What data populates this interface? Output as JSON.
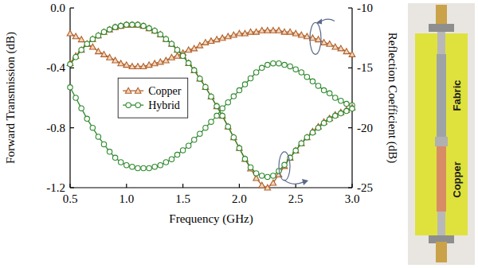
{
  "chart_data": {
    "type": "line",
    "x_label": "Frequency (GHz)",
    "y_label": "Forward Transmission (dB)",
    "y2_label": "Reflection Coefficient (dB)",
    "x": [
      0.5,
      0.55,
      0.6,
      0.65,
      0.7,
      0.75,
      0.8,
      0.85,
      0.9,
      0.95,
      1.0,
      1.05,
      1.1,
      1.15,
      1.2,
      1.25,
      1.3,
      1.35,
      1.4,
      1.45,
      1.5,
      1.55,
      1.6,
      1.65,
      1.7,
      1.75,
      1.8,
      1.85,
      1.9,
      1.95,
      2.0,
      2.05,
      2.1,
      2.15,
      2.2,
      2.25,
      2.3,
      2.35,
      2.4,
      2.45,
      2.5,
      2.55,
      2.6,
      2.65,
      2.7,
      2.75,
      2.8,
      2.85,
      2.9,
      2.95,
      3.0
    ],
    "xlim": [
      0.5,
      3.0
    ],
    "xticks": [
      0.5,
      {
        "value": 1,
        "label": "1.0"
      },
      1.5,
      {
        "value": 2,
        "label": "2.0"
      },
      2.5,
      {
        "value": 3,
        "label": "3.0"
      }
    ],
    "ylim": [
      -1.2,
      0
    ],
    "yticks": [
      {
        "value": 0,
        "label": "0.0"
      },
      -0.4,
      -0.8,
      -1.2
    ],
    "y2lim": [
      -25,
      -10
    ],
    "y2ticks": [
      -10,
      -15,
      -20,
      -25
    ],
    "grid": false,
    "legend": "center left",
    "annotations": [
      "Fabric",
      "Copper"
    ],
    "series": [
      {
        "name": "Copper",
        "color": "#b0602a",
        "marker": "triangle",
        "line_style": "solid",
        "values": [
          -0.17,
          -0.19,
          -0.21,
          -0.24,
          -0.26,
          -0.29,
          -0.31,
          -0.33,
          -0.35,
          -0.37,
          -0.38,
          -0.39,
          -0.39,
          -0.39,
          -0.38,
          -0.37,
          -0.36,
          -0.35,
          -0.33,
          -0.32,
          -0.3,
          -0.28,
          -0.27,
          -0.25,
          -0.23,
          -0.22,
          -0.21,
          -0.2,
          -0.19,
          -0.18,
          -0.17,
          -0.17,
          -0.16,
          -0.16,
          -0.15,
          -0.15,
          -0.15,
          -0.15,
          -0.16,
          -0.16,
          -0.17,
          -0.18,
          -0.19,
          -0.2,
          -0.21,
          -0.23,
          -0.24,
          -0.26,
          -0.27,
          -0.29,
          -0.31
        ]
      },
      {
        "name": "Hybrid",
        "color": "#2f8a2f",
        "marker": "circle",
        "line_style": "solid",
        "values": [
          -0.53,
          -0.6,
          -0.67,
          -0.74,
          -0.8,
          -0.86,
          -0.91,
          -0.96,
          -1.0,
          -1.03,
          -1.05,
          -1.06,
          -1.07,
          -1.07,
          -1.07,
          -1.06,
          -1.05,
          -1.03,
          -1.01,
          -0.98,
          -0.95,
          -0.92,
          -0.88,
          -0.84,
          -0.8,
          -0.76,
          -0.72,
          -0.67,
          -0.63,
          -0.59,
          -0.55,
          -0.51,
          -0.47,
          -0.43,
          -0.4,
          -0.38,
          -0.37,
          -0.37,
          -0.38,
          -0.39,
          -0.41,
          -0.43,
          -0.46,
          -0.49,
          -0.52,
          -0.55,
          -0.57,
          -0.6,
          -0.62,
          -0.64,
          -0.65
        ]
      },
      {
        "name": "Copper",
        "color": "#b0602a",
        "marker": "triangle",
        "line_style": "solid",
        "axis": "y2",
        "values": [
          -14.6,
          -14.0,
          -13.5,
          -13.0,
          -12.6,
          -12.3,
          -12.0,
          -11.8,
          -11.6,
          -11.5,
          -11.4,
          -11.4,
          -11.4,
          -11.5,
          -11.7,
          -11.9,
          -12.2,
          -12.6,
          -13.0,
          -13.5,
          -14.0,
          -14.6,
          -15.2,
          -15.9,
          -16.6,
          -17.4,
          -18.2,
          -19.0,
          -19.9,
          -20.8,
          -21.7,
          -22.6,
          -23.4,
          -24.2,
          -24.8,
          -25.0,
          -24.6,
          -23.9,
          -23.2,
          -22.5,
          -21.9,
          -21.3,
          -20.8,
          -20.3,
          -19.9,
          -19.5,
          -19.2,
          -18.9,
          -18.7,
          -18.5,
          -18.3
        ]
      },
      {
        "name": "Hybrid",
        "color": "#2f8a2f",
        "marker": "circle",
        "line_style": "solid",
        "axis": "y2",
        "values": [
          -14.7,
          -14.1,
          -13.5,
          -13.0,
          -12.6,
          -12.3,
          -12.0,
          -11.8,
          -11.6,
          -11.5,
          -11.4,
          -11.4,
          -11.4,
          -11.5,
          -11.7,
          -11.9,
          -12.2,
          -12.6,
          -13.0,
          -13.5,
          -14.0,
          -14.6,
          -15.2,
          -15.9,
          -16.6,
          -17.4,
          -18.2,
          -19.0,
          -19.9,
          -20.8,
          -21.7,
          -22.6,
          -23.3,
          -23.8,
          -24.0,
          -24.1,
          -24.0,
          -23.6,
          -23.1,
          -22.5,
          -21.9,
          -21.3,
          -20.8,
          -20.4,
          -20.0,
          -19.6,
          -19.3,
          -19.0,
          -18.8,
          -18.6,
          -18.4
        ]
      }
    ]
  }
}
